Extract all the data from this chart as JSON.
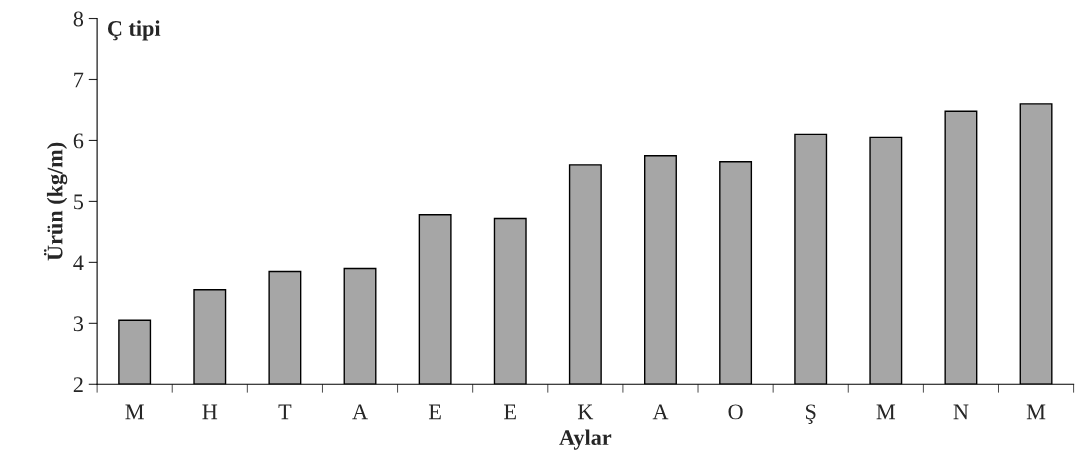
{
  "chart_data": {
    "type": "bar",
    "title": "Ç tipi",
    "xlabel": "Aylar",
    "ylabel": "Ürün (kg/m)",
    "categories": [
      "M",
      "H",
      "T",
      "A",
      "E",
      "E",
      "K",
      "A",
      "O",
      "Ş",
      "M",
      "N",
      "M"
    ],
    "values": [
      3.05,
      3.55,
      3.85,
      3.9,
      4.78,
      4.72,
      5.6,
      5.75,
      5.65,
      6.1,
      6.05,
      6.48,
      6.6
    ],
    "color": "#a6a6a6",
    "ylim": [
      2,
      8
    ],
    "yticks": [
      2,
      3,
      4,
      5,
      6,
      7,
      8
    ],
    "grid": false,
    "legend": false
  }
}
